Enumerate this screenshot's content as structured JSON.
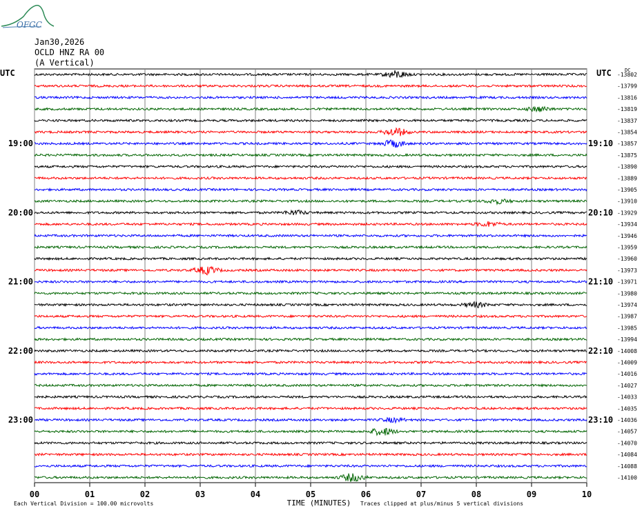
{
  "header": {
    "logo_text": "OFGC",
    "date": "Jan30,2026",
    "station": "OCLD HNZ RA 00",
    "component": "(A Vertical)"
  },
  "chart_data": {
    "type": "line",
    "title": "",
    "xlabel": "TIME (MINUTES)",
    "x_ticks": [
      "00",
      "01",
      "02",
      "03",
      "04",
      "05",
      "06",
      "07",
      "08",
      "09",
      "10"
    ],
    "xlim": [
      0,
      10
    ],
    "grid_vertical": true,
    "left_axis_label": "UTC",
    "right_axis_label": "UTC",
    "left_time_labels": [
      {
        "row": 6,
        "text": "19:00"
      },
      {
        "row": 12,
        "text": "20:00"
      },
      {
        "row": 18,
        "text": "21:00"
      },
      {
        "row": 24,
        "text": "22:00"
      },
      {
        "row": 30,
        "text": "23:00"
      }
    ],
    "right_time_labels": [
      {
        "row": 6,
        "text": "19:10"
      },
      {
        "row": 12,
        "text": "20:10"
      },
      {
        "row": 18,
        "text": "21:10"
      },
      {
        "row": 24,
        "text": "22:10"
      },
      {
        "row": 30,
        "text": "23:10"
      }
    ],
    "top_right_tag": "DC",
    "trace_colors": [
      "#000000",
      "#ff0000",
      "#0000ff",
      "#006400"
    ],
    "trace_offsets": [
      -13802,
      -13799,
      -13816,
      -13819,
      -13837,
      -13854,
      -13857,
      -13875,
      -13890,
      -13889,
      -13905,
      -13910,
      -13929,
      -13934,
      -13946,
      -13959,
      -13960,
      -13973,
      -13971,
      -13980,
      -13974,
      -13987,
      -13985,
      -13994,
      -14008,
      -14009,
      -14016,
      -14027,
      -14033,
      -14035,
      -14036,
      -14057,
      -14070,
      -14084,
      -14088,
      -14100
    ],
    "footer_left": "Each Vertical Division =  100.00 microvolts",
    "footer_right": "Traces clipped at plus/minus 5 vertical divisions"
  }
}
